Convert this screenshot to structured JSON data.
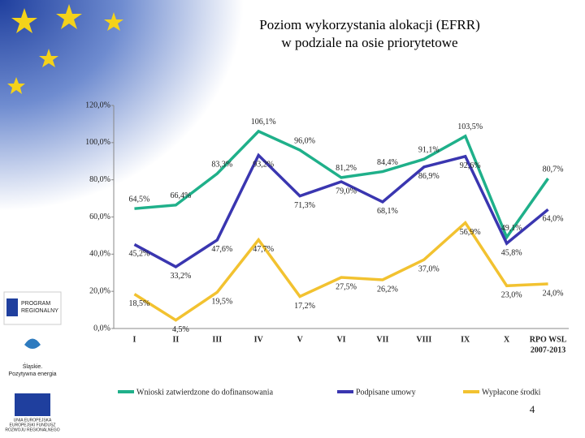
{
  "chart_data": {
    "type": "line",
    "title": [
      "Poziom wykorzystania alokacji (EFRR)",
      "w podziale na osie priorytetowe"
    ],
    "categories": [
      "I",
      "II",
      "III",
      "IV",
      "V",
      "VI",
      "VII",
      "VIII",
      "IX",
      "X",
      [
        "RPO WSL",
        "2007-2013"
      ]
    ],
    "ylim": [
      0,
      120
    ],
    "yticks": [
      {
        "value": 0,
        "label": "0,0%"
      },
      {
        "value": 20,
        "label": "20,0%"
      },
      {
        "value": 40,
        "label": "40,0%"
      },
      {
        "value": 60,
        "label": "60,0%"
      },
      {
        "value": 80,
        "label": "80,0%"
      },
      {
        "value": 100,
        "label": "100,0%"
      },
      {
        "value": 120,
        "label": "120,0%"
      }
    ],
    "series": [
      {
        "name": "Wnioski zatwierdzone do dofinansowania",
        "color": "#1fb08a",
        "values": [
          64.5,
          66.4,
          83.3,
          106.1,
          96.0,
          81.2,
          84.4,
          91.1,
          103.5,
          49.1,
          80.7
        ],
        "value_labels": [
          "64,5%",
          "66,4%",
          "83,3%",
          "106,1%",
          "96,0%",
          "81,2%",
          "84,4%",
          "91,1%",
          "103,5%",
          "49,1%",
          "80,7%"
        ]
      },
      {
        "name": "Podpisane umowy",
        "color": "#3a36b0",
        "values": [
          45.2,
          33.2,
          47.6,
          93.2,
          71.3,
          79.0,
          68.1,
          86.9,
          92.6,
          45.8,
          64.0
        ],
        "value_labels": [
          "45,2%",
          "33,2%",
          "47,6%",
          "93,2%",
          "71,3%",
          "79,0%",
          "68,1%",
          "86,9%",
          "92,6%",
          "45,8%",
          "64,0%"
        ]
      },
      {
        "name": "Wypłacone środki",
        "color": "#f2c230",
        "values": [
          18.5,
          4.5,
          19.5,
          47.7,
          17.2,
          27.5,
          26.2,
          37.0,
          56.9,
          23.0,
          24.0
        ],
        "value_labels": [
          "18,5%",
          "4,5%",
          "19,5%",
          "47,7%",
          "17,2%",
          "27,5%",
          "26,2%",
          "37,0%",
          "56,9%",
          "23,0%",
          "24,0%"
        ]
      }
    ]
  },
  "page_number": "4",
  "logos": {
    "program": [
      "PROGRAM",
      "REGIONALNY"
    ],
    "slaskie": [
      "Śląskie.",
      "Pozytywna energia"
    ],
    "eu": [
      "UNIA EUROPEJSKA",
      "EUROPEJSKI FUNDUSZ",
      "ROZWOJU REGIONALNEGO"
    ]
  }
}
